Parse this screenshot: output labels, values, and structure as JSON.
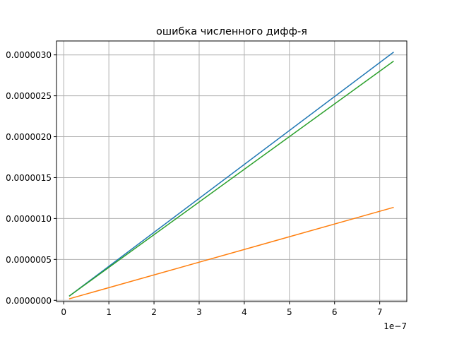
{
  "chart_data": {
    "type": "line",
    "title": "ошибка численного дифф-я",
    "xlabel": "",
    "ylabel": "",
    "x_offset_label": "1e−7",
    "x_tick_labels": [
      "0",
      "1",
      "2",
      "3",
      "4",
      "5",
      "6",
      "7"
    ],
    "x_ticks": [
      0,
      1e-07,
      2e-07,
      3e-07,
      4e-07,
      5e-07,
      6e-07,
      7e-07
    ],
    "y_tick_labels": [
      "0.0000000",
      "0.0000005",
      "0.0000010",
      "0.0000015",
      "0.0000020",
      "0.0000025",
      "0.0000030"
    ],
    "y_ticks": [
      0,
      5e-07,
      1e-06,
      1.5e-06,
      2e-06,
      2.5e-06,
      3e-06
    ],
    "xlim": [
      -1.6e-08,
      7.6e-07
    ],
    "ylim": [
      -1.5e-08,
      3.17e-06
    ],
    "grid": true,
    "series": [
      {
        "color": "#1f77b4",
        "x": [
          1.3e-08,
          7.3e-07
        ],
        "y": [
          5.5e-08,
          3.03e-06
        ]
      },
      {
        "color": "#ff7f0e",
        "x": [
          1.3e-08,
          7.3e-07
        ],
        "y": [
          2e-08,
          1.135e-06
        ]
      },
      {
        "color": "#2ca02c",
        "x": [
          1.3e-08,
          7.3e-07
        ],
        "y": [
          5.5e-08,
          2.92e-06
        ]
      }
    ]
  }
}
